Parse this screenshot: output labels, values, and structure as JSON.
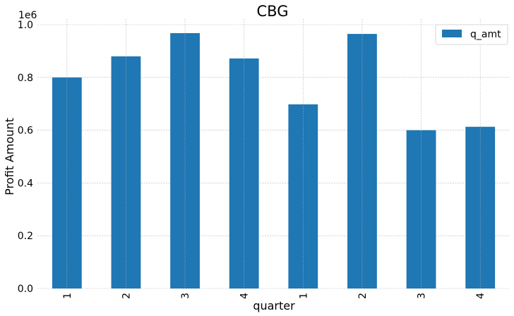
{
  "chart_data": {
    "type": "bar",
    "title": "CBG",
    "xlabel": "quarter",
    "ylabel": "Profit Amount",
    "offset_label": "1e6",
    "categories": [
      "1",
      "2",
      "3",
      "4",
      "1",
      "2",
      "3",
      "4"
    ],
    "series": [
      {
        "name": "q_amt",
        "color": "#1f77b4",
        "values": [
          800000,
          880000,
          968000,
          872000,
          698000,
          965000,
          600000,
          613000
        ]
      }
    ],
    "ylim": [
      0,
      1000000
    ],
    "yticks": [
      0,
      200000,
      400000,
      600000,
      800000,
      1000000
    ],
    "ytick_labels": [
      "0.0",
      "0.2",
      "0.4",
      "0.6",
      "0.8",
      "1.0"
    ],
    "grid": true,
    "legend_position": "top-right"
  }
}
